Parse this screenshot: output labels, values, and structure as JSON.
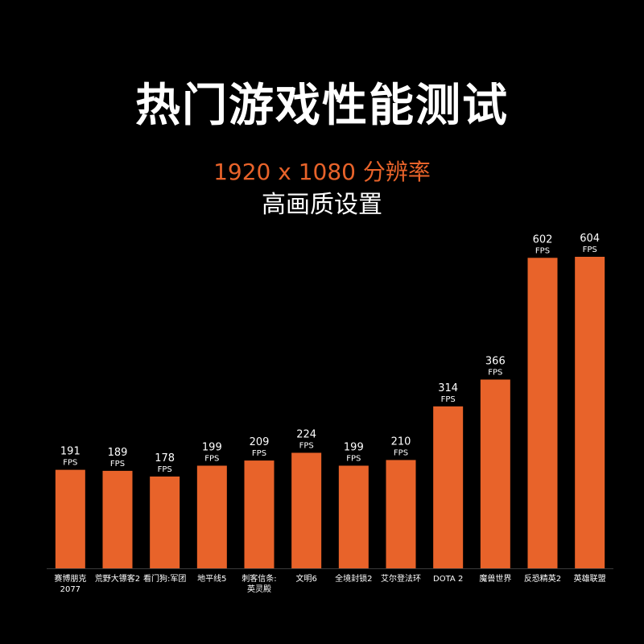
{
  "header": {
    "title": "热门游戏性能测试",
    "subtitle": "1920 x 1080 分辨率",
    "subtitle2": "高画质设置"
  },
  "colors": {
    "background": "#000000",
    "bar": "#e8632a",
    "accent_text": "#e8632a",
    "text": "#ffffff"
  },
  "chart_data": {
    "type": "bar",
    "title": "",
    "xlabel": "",
    "ylabel": "",
    "ylim": [
      0,
      700
    ],
    "grid": false,
    "legend": "none",
    "unit_label": "FPS",
    "categories": [
      [
        "赛博朋克",
        "2077"
      ],
      [
        "荒野大镖客2"
      ],
      [
        "看门狗:军团"
      ],
      [
        "地平线5"
      ],
      [
        "刺客信条:",
        "英灵殿"
      ],
      [
        "文明6"
      ],
      [
        "全境封锁2"
      ],
      [
        "艾尔登法环"
      ],
      [
        "DOTA 2"
      ],
      [
        "魔兽世界"
      ],
      [
        "反恐精英2"
      ],
      [
        "英雄联盟"
      ]
    ],
    "values": [
      191,
      189,
      178,
      199,
      209,
      224,
      199,
      210,
      314,
      366,
      602,
      604
    ]
  }
}
